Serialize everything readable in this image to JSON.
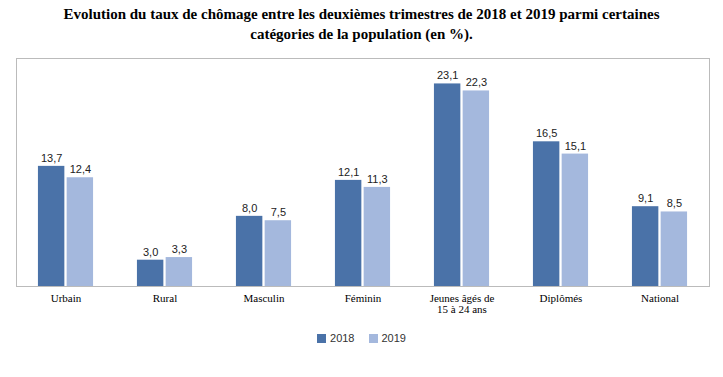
{
  "chart_data": {
    "type": "bar",
    "title": "Evolution du taux de chômage entre les deuxièmes trimestres de 2018 et 2019 parmi certaines catégories de la population (en %).",
    "categories": [
      "Urbain",
      "Rural",
      "Masculin",
      "Féminin",
      "Jeunes âgés de 15 à 24 ans",
      "Diplômés",
      "National"
    ],
    "series": [
      {
        "name": "2018",
        "color": "#4a72a8",
        "values": [
          13.7,
          3.0,
          8.0,
          12.1,
          23.1,
          16.5,
          9.1
        ],
        "value_labels": [
          "13,7",
          "3,0",
          "8,0",
          "12,1",
          "23,1",
          "16,5",
          "9,1"
        ]
      },
      {
        "name": "2019",
        "color": "#a4b8dd",
        "values": [
          12.4,
          3.3,
          7.5,
          11.3,
          22.3,
          15.1,
          8.5
        ],
        "value_labels": [
          "12,4",
          "3,3",
          "7,5",
          "11,3",
          "22,3",
          "15,1",
          "8,5"
        ]
      }
    ],
    "ylim": [
      0,
      26
    ],
    "grid": false,
    "data_labels": true,
    "tick_labels": "x",
    "legend": "bottom"
  }
}
